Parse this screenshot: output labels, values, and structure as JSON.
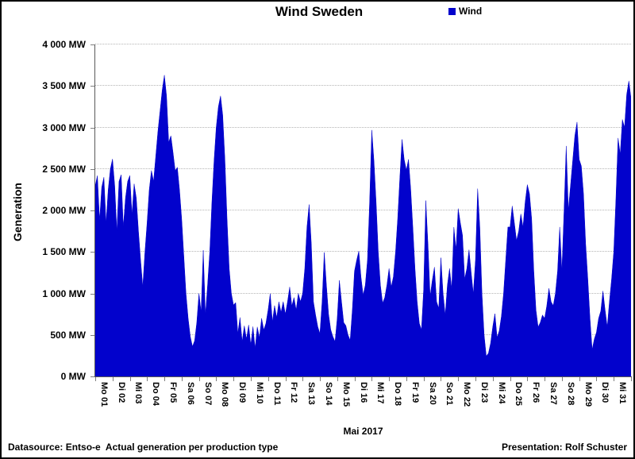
{
  "title": "Wind Sweden",
  "legend": {
    "label": "Wind",
    "color": "#0202CC"
  },
  "y_axis": {
    "label": "Generation",
    "tick_values": [
      0,
      500,
      1000,
      1500,
      2000,
      2500,
      3000,
      3500,
      4000
    ],
    "tick_labels": [
      "0 MW",
      "500 MW",
      "1 000 MW",
      "1 500 MW",
      "2 000 MW",
      "2 500 MW",
      "3 000 MW",
      "3 500 MW",
      "4 000 MW"
    ]
  },
  "x_axis": {
    "title": "Mai 2017"
  },
  "footer": {
    "left": "Datasource: Entso-e  Actual generation per production type",
    "right": "Presentation: Rolf Schuster"
  },
  "chart_data": {
    "type": "area",
    "title": "Wind Sweden",
    "xlabel": "Mai 2017",
    "ylabel": "Generation",
    "unit": "MW",
    "ylim": [
      0,
      4000
    ],
    "y_tick_step": 500,
    "grid": "horizontal-dotted",
    "legend_position": "top",
    "categories": [
      "Mo 01",
      "Di 02",
      "Mi 03",
      "Do 04",
      "Fr 05",
      "Sa 06",
      "So 07",
      "Mo 08",
      "Di 09",
      "Mi 10",
      "Do 11",
      "Fr 12",
      "Sa 13",
      "So 14",
      "Mo 15",
      "Di 16",
      "Mi 17",
      "Do 18",
      "Fr 19",
      "Sa 20",
      "So 21",
      "Mo 22",
      "Di 23",
      "Mi 24",
      "Do 25",
      "Fr 26",
      "Sa 27",
      "So 28",
      "Mo 29",
      "Di 30",
      "Mi 31"
    ],
    "points_per_category": 8,
    "series": [
      {
        "name": "Wind",
        "color": "#0202CC",
        "values": [
          2300,
          2420,
          1880,
          2280,
          2400,
          1850,
          2250,
          2500,
          2620,
          2300,
          1750,
          2350,
          2430,
          1800,
          2150,
          2350,
          2420,
          1950,
          2320,
          2150,
          1750,
          1400,
          1080,
          1500,
          1850,
          2250,
          2480,
          2350,
          2650,
          2950,
          3200,
          3450,
          3630,
          3380,
          2820,
          2900,
          2700,
          2480,
          2520,
          2250,
          1900,
          1450,
          1000,
          700,
          480,
          360,
          430,
          650,
          1000,
          780,
          1520,
          740,
          1100,
          1500,
          2100,
          2600,
          3000,
          3250,
          3380,
          3150,
          2620,
          1900,
          1300,
          1000,
          860,
          890,
          520,
          710,
          420,
          610,
          450,
          620,
          380,
          600,
          340,
          596,
          468,
          700,
          560,
          640,
          800,
          997,
          660,
          853,
          708,
          900,
          772,
          901,
          750,
          900,
          1077,
          850,
          950,
          800,
          1000,
          901,
          1000,
          1300,
          1800,
          2071,
          1600,
          900,
          740,
          600,
          516,
          900,
          1494,
          1100,
          750,
          564,
          480,
          420,
          700,
          1157,
          900,
          650,
          612,
          500,
          436,
          800,
          1269,
          1400,
          1510,
          1200,
          981,
          1100,
          1400,
          2100,
          2968,
          2600,
          2100,
          1500,
          1100,
          885,
          950,
          1100,
          1300,
          1077,
          1200,
          1500,
          1900,
          2400,
          2856,
          2615,
          2487,
          2615,
          2263,
          1800,
          1300,
          900,
          640,
          564,
          1045,
          2119,
          1600,
          965,
          1157,
          1317,
          900,
          820,
          1430,
          1000,
          740,
          1100,
          1300,
          1050,
          1798,
          1526,
          2022,
          1850,
          1700,
          1173,
          1300,
          1526,
          1250,
          997,
          1400,
          2263,
          1800,
          1000,
          500,
          244,
          280,
          400,
          600,
          756,
          468,
          550,
          724,
          1000,
          1400,
          1800,
          1800,
          2054,
          1850,
          1638,
          1750,
          1958,
          1800,
          2100,
          2311,
          2200,
          1900,
          1269,
          800,
          596,
          650,
          740,
          700,
          850,
          1061,
          900,
          853,
          1000,
          1269,
          1800,
          1269,
          2000,
          2776,
          2006,
          2300,
          2600,
          2900,
          3064,
          2615,
          2535,
          2200,
          1600,
          1173,
          700,
          324,
          450,
          532,
          700,
          788,
          1029,
          800,
          596,
          900,
          1173,
          1500,
          2135,
          2872,
          2679,
          3096,
          3000,
          3400,
          3561,
          3350
        ]
      }
    ]
  }
}
